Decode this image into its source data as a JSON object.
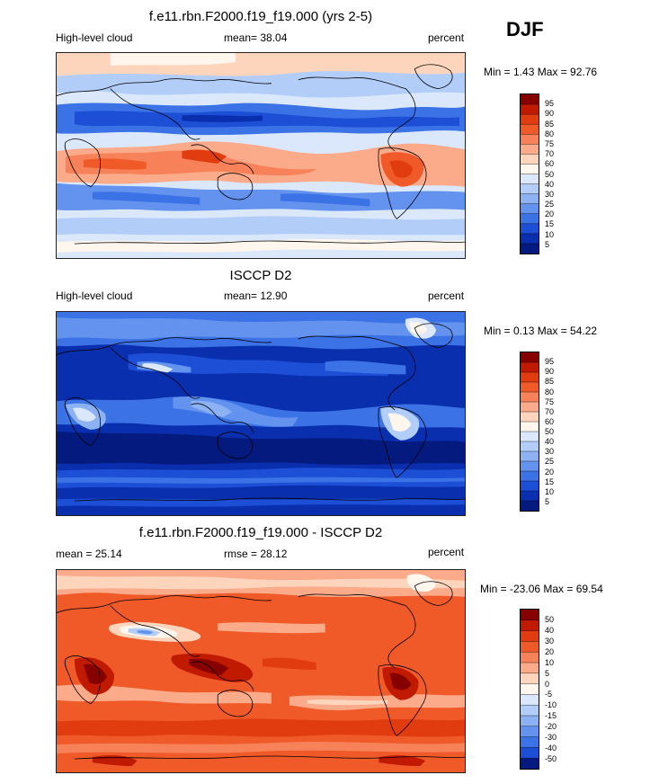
{
  "season": "DJF",
  "panels": [
    {
      "title": "f.e11.rbn.F2000.f19_f19.000 (yrs 2-5)",
      "left_label": "High-level cloud",
      "center_label": "mean=  38.04",
      "right_label": "percent",
      "minmax": "Min =   1.43 Max =  92.76",
      "levels": [
        "95",
        "90",
        "85",
        "80",
        "75",
        "70",
        "60",
        "50",
        "40",
        "30",
        "25",
        "20",
        "15",
        "10",
        "5"
      ],
      "colors": [
        "#870000",
        "#c01a00",
        "#e03c10",
        "#f05a28",
        "#f7825a",
        "#fbaa8a",
        "#fdd5bd",
        "#fff6ee",
        "#dbe8fb",
        "#b2cdf8",
        "#8cb2f4",
        "#6393ee",
        "#3b72e6",
        "#1c4fd6",
        "#0a2fae",
        "#041a7e"
      ]
    },
    {
      "title": "ISCCP D2",
      "left_label": "High-level cloud",
      "center_label": "mean=  12.90",
      "right_label": "percent",
      "minmax": "Min =   0.13 Max =  54.22",
      "levels": [
        "95",
        "90",
        "85",
        "80",
        "75",
        "70",
        "60",
        "50",
        "40",
        "30",
        "25",
        "20",
        "15",
        "10",
        "5"
      ],
      "colors": [
        "#870000",
        "#c01a00",
        "#e03c10",
        "#f05a28",
        "#f7825a",
        "#fbaa8a",
        "#fdd5bd",
        "#fff6ee",
        "#dbe8fb",
        "#b2cdf8",
        "#8cb2f4",
        "#6393ee",
        "#3b72e6",
        "#1c4fd6",
        "#0a2fae",
        "#041a7e"
      ]
    },
    {
      "title": "f.e11.rbn.F2000.f19_f19.000 - ISCCP D2",
      "left_label": "mean =  25.14",
      "center_label": "rmse =  28.12",
      "right_label": "percent",
      "minmax": "Min = -23.06 Max =  69.54",
      "levels": [
        "50",
        "40",
        "30",
        "20",
        "10",
        "5",
        "0",
        "-5",
        "-10",
        "-15",
        "-20",
        "-30",
        "-40",
        "-50"
      ],
      "colors": [
        "#870000",
        "#c01a00",
        "#e03c10",
        "#f05a28",
        "#f7825a",
        "#fbaa8a",
        "#fdd5bd",
        "#fff6ee",
        "#dbe8fb",
        "#b2cdf8",
        "#8cb2f4",
        "#6393ee",
        "#3b72e6",
        "#1c4fd6",
        "#041a7e"
      ]
    }
  ]
}
